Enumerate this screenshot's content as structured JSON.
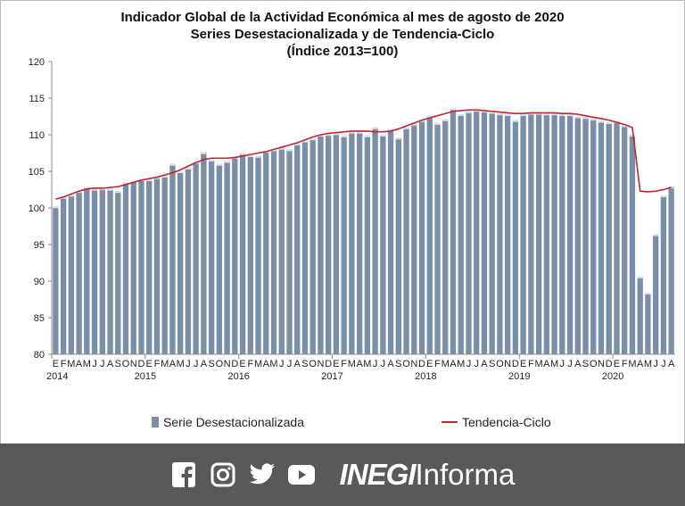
{
  "chart_data": {
    "type": "bar",
    "title": [
      "Indicador Global de la Actividad Económica al mes de agosto de 2020",
      "Series Desestacionalizada y de Tendencia-Ciclo",
      "(Índice 2013=100)"
    ],
    "ylim": [
      80,
      120
    ],
    "yticks": [
      80,
      85,
      90,
      95,
      100,
      105,
      110,
      115,
      120
    ],
    "month_labels": [
      "E",
      "F",
      "M",
      "A",
      "M",
      "J",
      "J",
      "A",
      "S",
      "O",
      "N",
      "D"
    ],
    "years": [
      "2014",
      "2015",
      "2016",
      "2017",
      "2018",
      "2019",
      "2020"
    ],
    "series": [
      {
        "name": "Serie Desestacionalizada",
        "type": "bar",
        "color": "#7b8ea8",
        "values": [
          100.2,
          101.5,
          101.8,
          102.3,
          102.8,
          102.6,
          102.7,
          102.6,
          102.3,
          103.5,
          103.7,
          103.9,
          103.9,
          104.2,
          104.4,
          106.0,
          105.0,
          105.5,
          106.3,
          107.6,
          106.6,
          106.0,
          106.4,
          107.0,
          107.5,
          107.2,
          107.1,
          107.8,
          108.0,
          108.2,
          108.0,
          108.8,
          109.2,
          109.5,
          110.0,
          110.1,
          110.2,
          109.9,
          110.4,
          110.4,
          109.9,
          111.0,
          110.0,
          110.8,
          109.6,
          111.0,
          111.5,
          112.0,
          112.6,
          111.6,
          112.1,
          113.6,
          112.8,
          113.2,
          113.4,
          113.3,
          113.1,
          112.9,
          112.8,
          112.0,
          112.8,
          113.0,
          113.0,
          112.9,
          112.9,
          112.8,
          112.8,
          112.5,
          112.4,
          112.2,
          111.9,
          111.7,
          111.8,
          111.3,
          110.0,
          90.6,
          88.4,
          96.4,
          101.7,
          102.9
        ]
      },
      {
        "name": "Tendencia-Ciclo",
        "type": "line",
        "color": "#c0262d",
        "values": [
          101.2,
          101.5,
          101.9,
          102.3,
          102.6,
          102.7,
          102.7,
          102.8,
          102.9,
          103.2,
          103.5,
          103.8,
          104.0,
          104.2,
          104.5,
          104.8,
          105.2,
          105.7,
          106.2,
          106.6,
          106.8,
          106.8,
          106.8,
          106.9,
          107.1,
          107.3,
          107.5,
          107.7,
          108.0,
          108.3,
          108.6,
          108.9,
          109.3,
          109.7,
          110.0,
          110.2,
          110.3,
          110.4,
          110.5,
          110.5,
          110.5,
          110.4,
          110.4,
          110.5,
          110.8,
          111.2,
          111.6,
          112.0,
          112.3,
          112.6,
          112.9,
          113.2,
          113.3,
          113.4,
          113.4,
          113.3,
          113.2,
          113.1,
          113.0,
          112.9,
          112.9,
          113.0,
          113.0,
          113.0,
          113.0,
          112.9,
          112.9,
          112.8,
          112.6,
          112.4,
          112.2,
          112.0,
          111.7,
          111.4,
          111.0,
          102.3,
          102.2,
          102.3,
          102.5,
          102.8
        ]
      }
    ]
  },
  "footer": {
    "brand_bold": "INEGI",
    "brand_light": "Informa"
  }
}
